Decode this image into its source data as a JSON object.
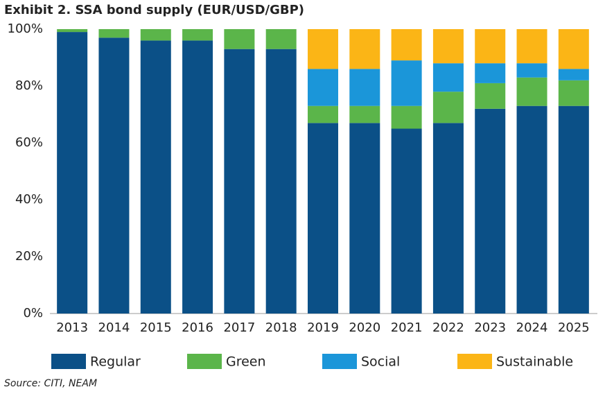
{
  "chart_data": {
    "type": "stacked_bar",
    "title": "Exhibit 2. SSA bond supply (EUR/USD/GBP)",
    "categories": [
      "2013",
      "2014",
      "2015",
      "2016",
      "2017",
      "2018",
      "2019",
      "2020",
      "2021",
      "2022",
      "2023",
      "2024",
      "2025"
    ],
    "series": [
      {
        "name": "Regular",
        "color": "#0b5087",
        "values": [
          99,
          97,
          96,
          96,
          93,
          93,
          67,
          67,
          65,
          67,
          72,
          73,
          73
        ]
      },
      {
        "name": "Green",
        "color": "#5bb54a",
        "values": [
          1,
          3,
          4,
          4,
          7,
          7,
          6,
          6,
          8,
          11,
          9,
          10,
          9
        ]
      },
      {
        "name": "Social",
        "color": "#1b96d9",
        "values": [
          0,
          0,
          0,
          0,
          0,
          0,
          13,
          13,
          16,
          10,
          7,
          5,
          4
        ]
      },
      {
        "name": "Sustainable",
        "color": "#fbb516",
        "values": [
          0,
          0,
          0,
          0,
          0,
          0,
          14,
          14,
          11,
          12,
          12,
          12,
          14
        ]
      }
    ],
    "ylim": [
      0,
      100
    ],
    "yticks": [
      {
        "value": 0,
        "label": "0%"
      },
      {
        "value": 20,
        "label": "20%"
      },
      {
        "value": 40,
        "label": "40%"
      },
      {
        "value": 60,
        "label": "60%"
      },
      {
        "value": 80,
        "label": "80%"
      },
      {
        "value": 100,
        "label": "100%"
      }
    ],
    "legend": "bottom",
    "source": "Source: CITI, NEAM"
  }
}
